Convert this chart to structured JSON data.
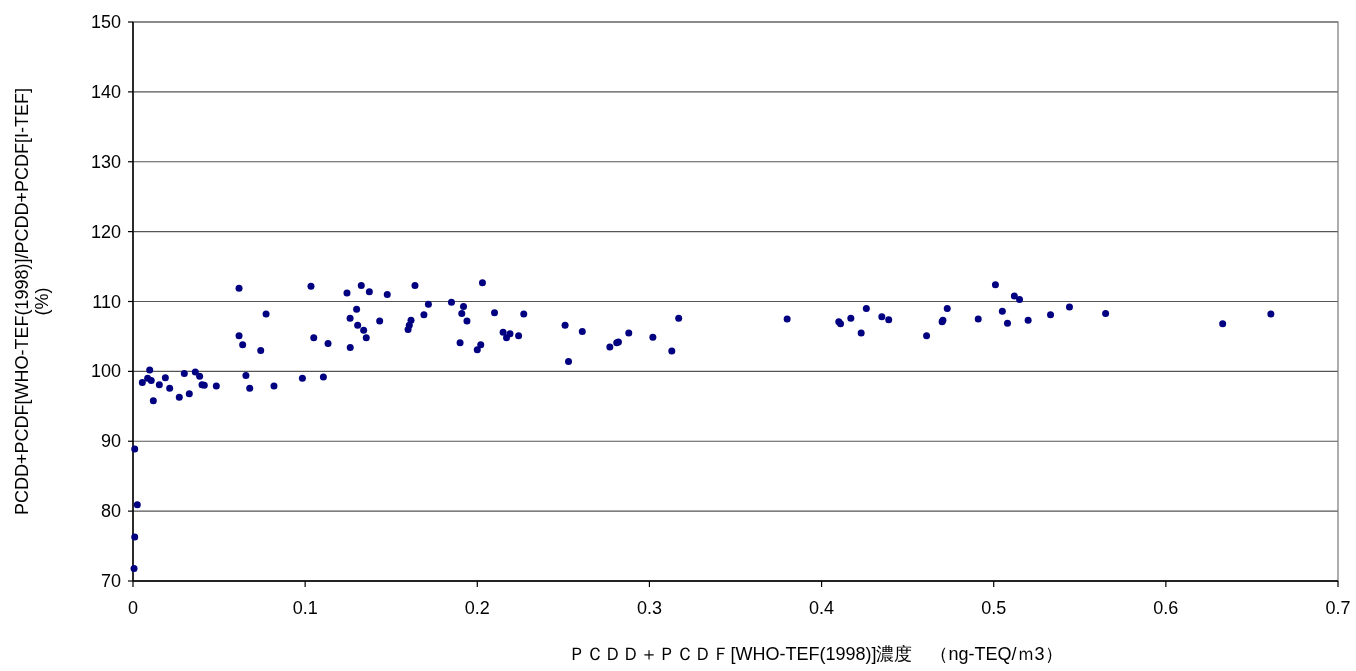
{
  "chart_data": {
    "type": "scatter",
    "xlabel": "ＰＣＤＤ＋ＰＣＤＦ[WHO-TEF(1998)]濃度　（ng-TEQ/ｍ3）",
    "ylabel": "PCDD+PCDF[WHO-TEF(1998)]/PCDD+PCDF[I-TEF]\n(%)",
    "xlim": [
      0,
      0.7
    ],
    "xticks": [
      0,
      0.1,
      0.2,
      0.3,
      0.4,
      0.5,
      0.6,
      0.7
    ],
    "ylim": [
      70,
      150
    ],
    "yticks": [
      70,
      80,
      90,
      100,
      110,
      120,
      130,
      140,
      150
    ],
    "grid": "y",
    "marker": "circle",
    "x": [
      0.0006,
      0.001,
      0.0025,
      0.001,
      0.0054,
      0.0085,
      0.0097,
      0.0106,
      0.0118,
      0.0153,
      0.0188,
      0.0213,
      0.0269,
      0.0298,
      0.0327,
      0.0362,
      0.0387,
      0.0401,
      0.0414,
      0.0484,
      0.0616,
      0.0616,
      0.0637,
      0.0656,
      0.0678,
      0.0742,
      0.0773,
      0.0819,
      0.0984,
      0.1034,
      0.105,
      0.1106,
      0.1133,
      0.1243,
      0.1261,
      0.1262,
      0.1299,
      0.1305,
      0.1326,
      0.134,
      0.1355,
      0.1373,
      0.1433,
      0.1477,
      0.1598,
      0.1605,
      0.1615,
      0.1638,
      0.169,
      0.1716,
      0.185,
      0.192,
      0.191,
      0.194,
      0.19,
      0.2,
      0.202,
      0.203,
      0.21,
      0.215,
      0.217,
      0.219,
      0.224,
      0.227,
      0.251,
      0.253,
      0.261,
      0.277,
      0.281,
      0.282,
      0.288,
      0.302,
      0.313,
      0.317,
      0.38,
      0.41,
      0.411,
      0.417,
      0.423,
      0.426,
      0.435,
      0.439,
      0.461,
      0.47,
      0.4705,
      0.473,
      0.491,
      0.501,
      0.505,
      0.508,
      0.512,
      0.515,
      0.52,
      0.533,
      0.544,
      0.565,
      0.633,
      0.661
    ],
    "series": [
      {
        "color": "#000080",
        "values": [
          71.8,
          76.3,
          80.9,
          88.9,
          98.4,
          99.0,
          100.2,
          98.7,
          95.8,
          98.1,
          99.1,
          97.6,
          96.3,
          99.7,
          96.8,
          99.9,
          99.3,
          98.1,
          98.0,
          97.9,
          111.9,
          105.1,
          103.8,
          99.4,
          97.6,
          103.0,
          108.2,
          97.9,
          99.0,
          112.2,
          104.8,
          99.2,
          104.0,
          111.2,
          107.6,
          103.4,
          108.9,
          106.6,
          112.3,
          105.9,
          104.8,
          111.4,
          107.2,
          111.0,
          106.0,
          106.6,
          107.3,
          112.3,
          108.1,
          109.6,
          109.9,
          109.3,
          108.3,
          107.2,
          104.1,
          103.1,
          103.8,
          112.7,
          108.4,
          105.6,
          104.8,
          105.4,
          105.1,
          108.2,
          106.6,
          101.4,
          105.7,
          103.5,
          104.1,
          104.2,
          105.5,
          104.9,
          102.9,
          107.6,
          107.5,
          107.1,
          106.8,
          107.6,
          105.5,
          109.0,
          107.8,
          107.4,
          105.1,
          107.1,
          107.3,
          109.0,
          107.5,
          112.4,
          108.6,
          106.9,
          110.8,
          110.3,
          107.3,
          108.1,
          109.2,
          108.3,
          106.8,
          108.2
        ]
      }
    ]
  }
}
